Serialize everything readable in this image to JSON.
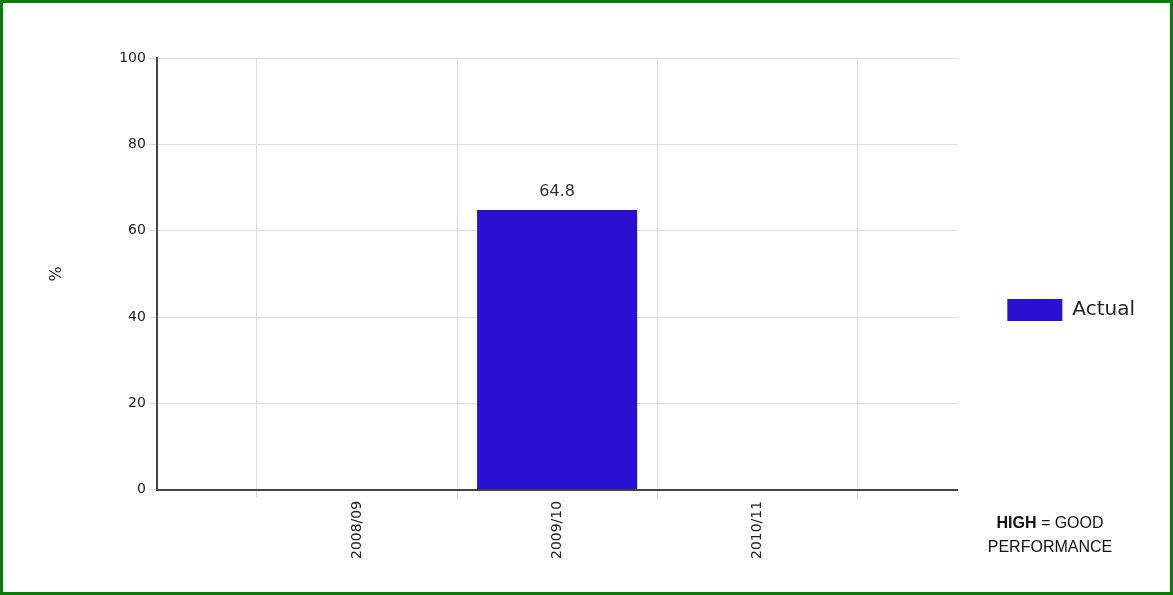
{
  "chart_data": {
    "type": "bar",
    "categories": [
      null,
      "2008/09",
      "2009/10",
      "2010/11",
      null
    ],
    "series": [
      {
        "name": "Actual",
        "color": "#2a10d0",
        "values": [
          null,
          null,
          64.8,
          null,
          null
        ]
      }
    ],
    "ylabel": "%",
    "ylim": [
      0,
      100
    ],
    "yticks": [
      0,
      20,
      40,
      60,
      80,
      100
    ],
    "grid": true,
    "legend": "right",
    "data_labels": true,
    "annotations": [
      "HIGH = GOOD PERFORMANCE"
    ]
  }
}
